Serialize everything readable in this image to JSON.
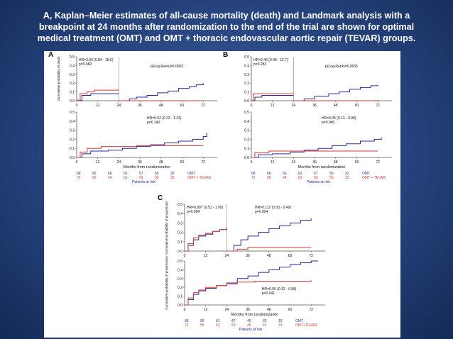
{
  "slide": {
    "title_lines": [
      "A, Kaplan–Meier estimates of all-cause mortality (death) and Landmark analysis with a",
      "breakpoint at 24 months after randomization to the end of the trial are shown for optimal",
      "medical treatment (OMT) and OMT + thoracic endovascular aortic repair (TEVAR) groups."
    ]
  },
  "panels": {
    "a": "A",
    "b": "B",
    "c": "C"
  },
  "risk_tables": {
    "a": {
      "omt": [
        "68",
        "66",
        "66",
        "62",
        "57",
        "50",
        "32"
      ],
      "tevar": [
        "72",
        "65",
        "64",
        "63",
        "59",
        "55",
        "32"
      ],
      "omt_label": "OMT",
      "tevar_label": "OMT + TEVAR",
      "caption": "Patients at risk"
    },
    "b": {
      "omt": [
        "68",
        "66",
        "66",
        "62",
        "57",
        "50",
        "32"
      ],
      "tevar": [
        "72",
        "65",
        "64",
        "63",
        "59",
        "55",
        "32"
      ],
      "omt_label": "OMT",
      "tevar_label": "OMT + TEVAR",
      "caption": "Patients at risk"
    },
    "c": {
      "omt": [
        "68",
        "56",
        "51",
        "47",
        "40",
        "32",
        "19"
      ],
      "tevar": [
        "72",
        "55",
        "52",
        "50",
        "45",
        "42",
        "23"
      ],
      "omt_label": "OMT",
      "tevar_label": "OMT+TEVAR",
      "caption": "Patients at risk"
    }
  },
  "colors": {
    "omt": "#2a2a9a",
    "tevar": "#d23a3a",
    "axis": "#555555",
    "text": "#111111"
  },
  "chart_data": [
    {
      "id": "A-landmark",
      "type": "line",
      "ylabel": "Cumulative probability of death",
      "ylim": [
        0,
        0.5
      ],
      "yticks": [
        "0.0",
        "0.1",
        "0.2",
        "0.3",
        "0.4",
        "0.5"
      ],
      "xticks": [
        "0",
        "12",
        "24",
        "36",
        "48",
        "60",
        "72"
      ],
      "xlim": [
        0,
        80
      ],
      "landmark": 24,
      "annotations": [
        "HR=3.96 (0.84 - 18.6)",
        "p=0.082",
        "p(Log-Rank)=0.0003"
      ],
      "series": [
        {
          "key": "omt",
          "points": [
            [
              0,
              0.005
            ],
            [
              3,
              0.06
            ],
            [
              8,
              0.08
            ],
            [
              24,
              0.08
            ],
            [
              24,
              0
            ],
            [
              30,
              0.02
            ],
            [
              34,
              0.04
            ],
            [
              40,
              0.06
            ],
            [
              46,
              0.09
            ],
            [
              52,
              0.11
            ],
            [
              58,
              0.14
            ],
            [
              64,
              0.16
            ],
            [
              68,
              0.18
            ],
            [
              72,
              0.2
            ]
          ]
        },
        {
          "key": "tevar",
          "points": [
            [
              0,
              0.005
            ],
            [
              2,
              0.08
            ],
            [
              6,
              0.1
            ],
            [
              10,
              0.12
            ],
            [
              24,
              0.12
            ],
            [
              24,
              0
            ],
            [
              72,
              0.005
            ]
          ]
        }
      ]
    },
    {
      "id": "A-overall",
      "type": "line",
      "ylim": [
        0,
        0.5
      ],
      "yticks": [
        "0.0",
        "0.1",
        "0.2",
        "0.3",
        "0.4",
        "0.5"
      ],
      "xticks": [
        "0",
        "12",
        "24",
        "36",
        "48",
        "60",
        "72"
      ],
      "xlim": [
        0,
        80
      ],
      "xlabel": "Months from randomization",
      "annotations": [
        "HR=0.52 (0.22 - 1.24)",
        "p=0.140"
      ],
      "series": [
        {
          "key": "omt",
          "points": [
            [
              0,
              0
            ],
            [
              3,
              0.04
            ],
            [
              8,
              0.07
            ],
            [
              18,
              0.08
            ],
            [
              26,
              0.1
            ],
            [
              34,
              0.12
            ],
            [
              42,
              0.14
            ],
            [
              50,
              0.16
            ],
            [
              58,
              0.18
            ],
            [
              66,
              0.2
            ],
            [
              72,
              0.23
            ],
            [
              74,
              0.27
            ]
          ]
        },
        {
          "key": "tevar",
          "points": [
            [
              0,
              0
            ],
            [
              2,
              0.06
            ],
            [
              6,
              0.1
            ],
            [
              14,
              0.12
            ],
            [
              30,
              0.12
            ],
            [
              34,
              0.13
            ],
            [
              60,
              0.13
            ],
            [
              72,
              0.13
            ]
          ]
        }
      ]
    },
    {
      "id": "B-landmark",
      "type": "line",
      "ylim": [
        0,
        0.5
      ],
      "yticks": [
        "0.0",
        "0.1",
        "0.2",
        "0.3",
        "0.4",
        "0.5"
      ],
      "xticks": [
        "0",
        "12",
        "24",
        "36",
        "48",
        "60",
        "72"
      ],
      "xlim": [
        0,
        80
      ],
      "landmark": 24,
      "annotations": [
        "HR=2.46 (0.48 - 12.7)",
        "p=0.283",
        "p(Log-Rank)=0.0005"
      ],
      "series": [
        {
          "key": "omt",
          "points": [
            [
              0,
              0
            ],
            [
              2,
              0.04
            ],
            [
              6,
              0.06
            ],
            [
              24,
              0.06
            ],
            [
              24,
              0
            ],
            [
              30,
              0.02
            ],
            [
              36,
              0.05
            ],
            [
              44,
              0.08
            ],
            [
              50,
              0.1
            ],
            [
              56,
              0.13
            ],
            [
              62,
              0.15
            ],
            [
              68,
              0.17
            ],
            [
              72,
              0.18
            ]
          ]
        },
        {
          "key": "tevar",
          "points": [
            [
              0,
              0
            ],
            [
              1,
              0.08
            ],
            [
              24,
              0.08
            ],
            [
              24,
              0
            ],
            [
              72,
              0.01
            ]
          ]
        }
      ]
    },
    {
      "id": "B-overall",
      "type": "line",
      "ylim": [
        0,
        0.5
      ],
      "yticks": [
        "0.0",
        "0.1",
        "0.2",
        "0.3",
        "0.4",
        "0.5"
      ],
      "xticks": [
        "0",
        "12",
        "24",
        "36",
        "48",
        "60",
        "72"
      ],
      "xlim": [
        0,
        80
      ],
      "xlabel": "Months from randomization",
      "annotations": [
        "HR=0.35 (0.13 - 0.98)",
        "p=0.045"
      ],
      "series": [
        {
          "key": "omt",
          "points": [
            [
              0,
              0
            ],
            [
              4,
              0.03
            ],
            [
              12,
              0.04
            ],
            [
              22,
              0.06
            ],
            [
              30,
              0.08
            ],
            [
              38,
              0.1
            ],
            [
              46,
              0.13
            ],
            [
              54,
              0.15
            ],
            [
              62,
              0.18
            ],
            [
              70,
              0.2
            ],
            [
              74,
              0.22
            ]
          ]
        },
        {
          "key": "tevar",
          "points": [
            [
              0,
              0
            ],
            [
              2,
              0.05
            ],
            [
              10,
              0.07
            ],
            [
              36,
              0.07
            ],
            [
              72,
              0.07
            ]
          ]
        }
      ]
    },
    {
      "id": "C-landmark",
      "type": "line",
      "ylabel": "Cumulative probability of progression",
      "ylim": [
        0,
        0.5
      ],
      "yticks": [
        "0.0",
        "0.1",
        "0.2",
        "0.3",
        "0.4",
        "0.5"
      ],
      "xticks": [
        "0",
        "12",
        "24",
        "36",
        "48",
        "60",
        "72"
      ],
      "xlim": [
        0,
        80
      ],
      "landmark": 24,
      "annotations": [
        "HR=0.997 (0.51 - 1.95)",
        "p=0.994",
        "HR=0.112 (0.03 - 0.49)",
        "p=0.004"
      ],
      "series": [
        {
          "key": "omt",
          "points": [
            [
              0,
              0
            ],
            [
              2,
              0.06
            ],
            [
              5,
              0.12
            ],
            [
              8,
              0.16
            ],
            [
              12,
              0.18
            ],
            [
              16,
              0.21
            ],
            [
              20,
              0.23
            ],
            [
              24,
              0.25
            ],
            [
              24,
              0
            ],
            [
              28,
              0.06
            ],
            [
              32,
              0.12
            ],
            [
              36,
              0.16
            ],
            [
              42,
              0.2
            ],
            [
              48,
              0.24
            ],
            [
              54,
              0.27
            ],
            [
              60,
              0.3
            ],
            [
              66,
              0.33
            ],
            [
              72,
              0.35
            ]
          ]
        },
        {
          "key": "tevar",
          "points": [
            [
              0,
              0
            ],
            [
              2,
              0.08
            ],
            [
              5,
              0.14
            ],
            [
              8,
              0.17
            ],
            [
              12,
              0.19
            ],
            [
              16,
              0.21
            ],
            [
              20,
              0.23
            ],
            [
              24,
              0.24
            ],
            [
              24,
              0
            ],
            [
              30,
              0.02
            ],
            [
              36,
              0.04
            ],
            [
              72,
              0.04
            ]
          ]
        }
      ]
    },
    {
      "id": "C-overall",
      "type": "line",
      "ylabel": "Cumulative probability of progression",
      "ylim": [
        0,
        0.5
      ],
      "yticks": [
        "0.0",
        "0.1",
        "0.2",
        "0.3",
        "0.4",
        "0.5"
      ],
      "xticks": [
        "0",
        "12",
        "24",
        "36",
        "48",
        "60",
        "72"
      ],
      "xlim": [
        0,
        80
      ],
      "xlabel": "Months from randomization",
      "annotations": [
        "HR=0.55 (0.32 - 0.98)",
        "p=0.041"
      ],
      "series": [
        {
          "key": "omt",
          "points": [
            [
              0,
              0
            ],
            [
              2,
              0.06
            ],
            [
              5,
              0.12
            ],
            [
              8,
              0.16
            ],
            [
              12,
              0.19
            ],
            [
              18,
              0.22
            ],
            [
              24,
              0.25
            ],
            [
              30,
              0.3
            ],
            [
              36,
              0.33
            ],
            [
              42,
              0.37
            ],
            [
              48,
              0.4
            ],
            [
              54,
              0.43
            ],
            [
              60,
              0.46
            ],
            [
              66,
              0.48
            ],
            [
              72,
              0.5
            ],
            [
              76,
              0.5
            ]
          ]
        },
        {
          "key": "tevar",
          "points": [
            [
              0,
              0
            ],
            [
              2,
              0.08
            ],
            [
              5,
              0.14
            ],
            [
              8,
              0.17
            ],
            [
              12,
              0.2
            ],
            [
              18,
              0.22
            ],
            [
              24,
              0.24
            ],
            [
              30,
              0.26
            ],
            [
              40,
              0.27
            ],
            [
              50,
              0.27
            ],
            [
              60,
              0.27
            ],
            [
              72,
              0.28
            ]
          ]
        }
      ]
    }
  ]
}
